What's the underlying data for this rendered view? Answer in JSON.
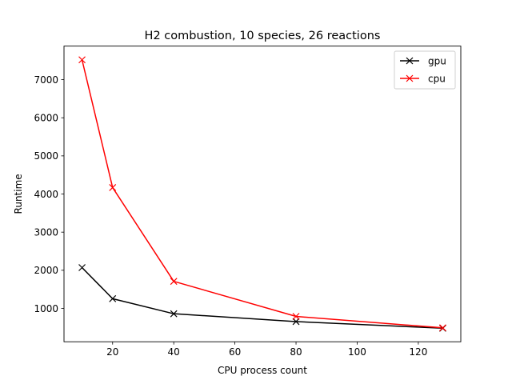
{
  "chart_data": {
    "type": "line",
    "title": "H2 combustion, 10 species, 26 reactions",
    "xlabel": "CPU process count",
    "ylabel": "Runtime",
    "xlim": [
      4.1,
      133.9
    ],
    "ylim": [
      125,
      7880
    ],
    "xticks": [
      20,
      40,
      60,
      80,
      100,
      120
    ],
    "yticks": [
      1000,
      2000,
      3000,
      4000,
      5000,
      6000,
      7000
    ],
    "grid": false,
    "legend_position": "top-right",
    "marker": "x",
    "x": [
      10,
      20,
      40,
      80,
      128
    ],
    "series": [
      {
        "name": "gpu",
        "color": "#000000",
        "values": [
          2070,
          1255,
          860,
          655,
          480
        ]
      },
      {
        "name": "cpu",
        "color": "#ff0000",
        "values": [
          7520,
          4170,
          1710,
          790,
          490
        ]
      }
    ]
  }
}
